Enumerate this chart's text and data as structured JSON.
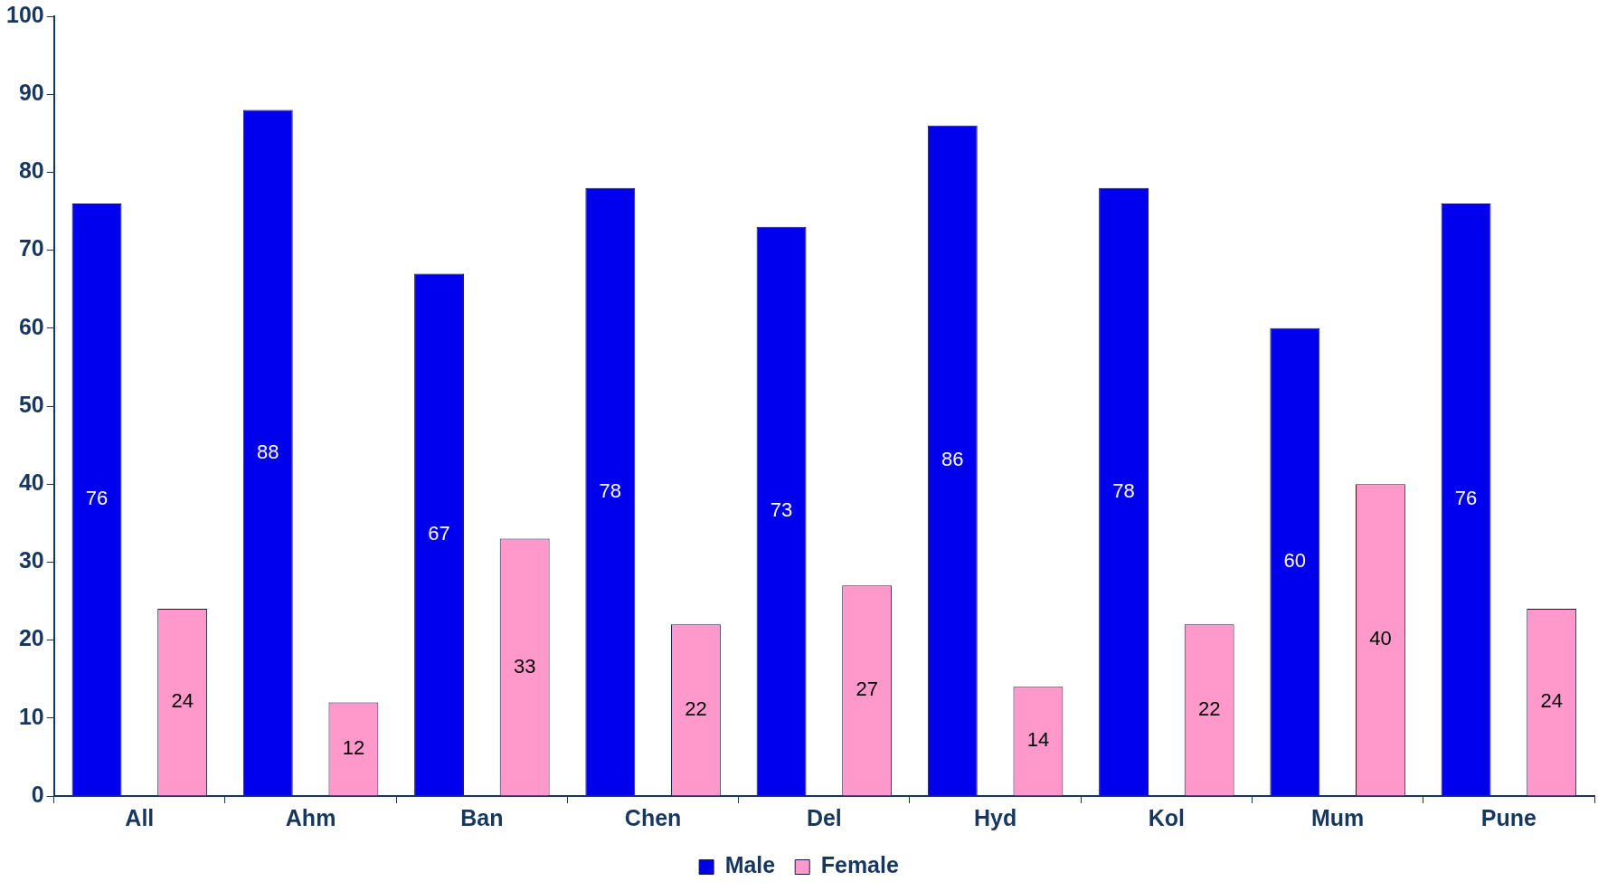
{
  "chart_data": {
    "type": "bar",
    "categories": [
      "All",
      "Ahm",
      "Ban",
      "Chen",
      "Del",
      "Hyd",
      "Kol",
      "Mum",
      "Pune"
    ],
    "series": [
      {
        "name": "Male",
        "color": "#0000ee",
        "values": [
          76,
          88,
          67,
          78,
          73,
          86,
          78,
          60,
          76
        ]
      },
      {
        "name": "Female",
        "color": "#ff99cc",
        "values": [
          24,
          12,
          33,
          22,
          27,
          14,
          22,
          40,
          24
        ]
      }
    ],
    "ylim": [
      0,
      100
    ],
    "yticks": [
      0,
      10,
      20,
      30,
      40,
      50,
      60,
      70,
      80,
      90,
      100
    ],
    "grid": false,
    "legend": "bottom",
    "data_labels": true
  }
}
